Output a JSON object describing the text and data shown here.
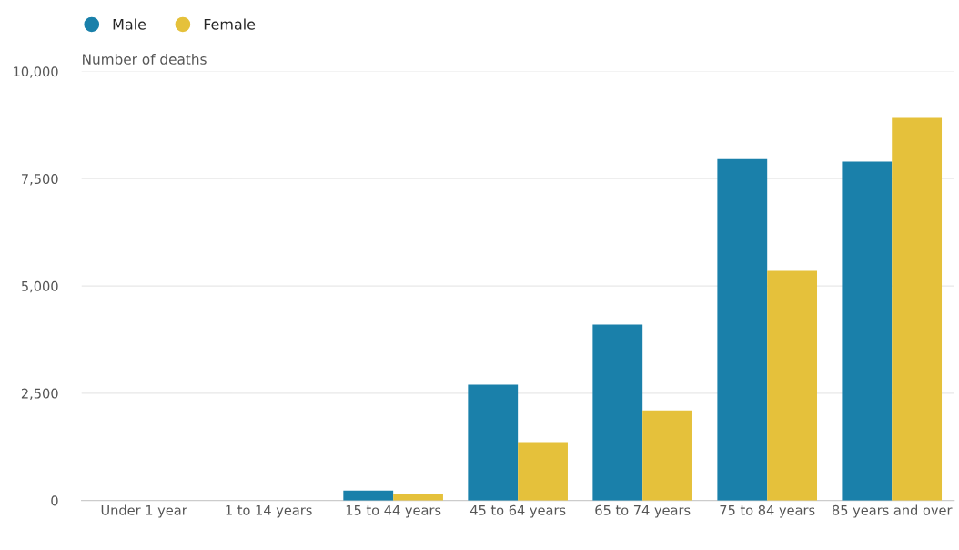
{
  "chart_data": {
    "type": "bar",
    "ylabel": "Number of deaths",
    "categories": [
      "Under 1 year",
      "1 to 14 years",
      "15 to 44 years",
      "45 to 64 years",
      "65 to 74 years",
      "75 to 84 years",
      "85 years and over"
    ],
    "series": [
      {
        "name": "Male",
        "color": "#1a80aa",
        "values": [
          null,
          null,
          230,
          2700,
          4100,
          7960,
          7900
        ]
      },
      {
        "name": "Female",
        "color": "#e5c13b",
        "values": [
          null,
          null,
          150,
          1360,
          2100,
          5350,
          8920
        ]
      }
    ],
    "ylim": [
      0,
      10000
    ],
    "yticks": [
      0,
      {
        "value": 2500,
        "label": "2,500"
      },
      {
        "value": 5000,
        "label": "5,000"
      },
      {
        "value": 7500,
        "label": "7,500"
      },
      {
        "value": 10000,
        "label": "10,000"
      }
    ],
    "grid": "y",
    "legend": "top left"
  }
}
